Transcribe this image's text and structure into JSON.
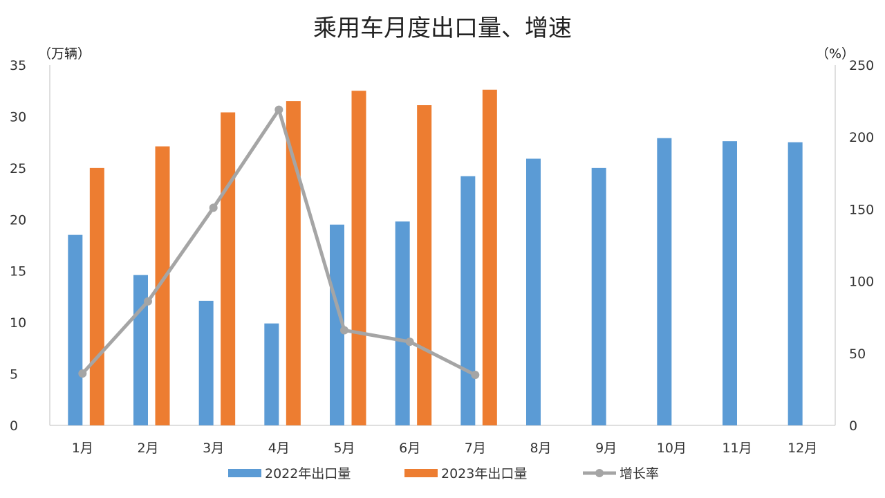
{
  "chart_data": {
    "type": "bar",
    "title": "乘用车月度出口量、增速",
    "left_unit": "（万辆）",
    "right_unit": "（%）",
    "categories": [
      "1月",
      "2月",
      "3月",
      "4月",
      "5月",
      "6月",
      "7月",
      "8月",
      "9月",
      "10月",
      "11月",
      "12月"
    ],
    "series": [
      {
        "name": "2022年出口量",
        "kind": "bar",
        "axis": "left",
        "color": "#5B9BD5",
        "values": [
          18.5,
          14.6,
          12.1,
          9.9,
          19.5,
          19.8,
          24.2,
          25.9,
          25.0,
          27.9,
          27.6,
          27.5
        ]
      },
      {
        "name": "2023年出口量",
        "kind": "bar",
        "axis": "left",
        "color": "#ED7D31",
        "values": [
          25.0,
          27.1,
          30.4,
          31.5,
          32.5,
          31.1,
          32.6,
          null,
          null,
          null,
          null,
          null
        ]
      },
      {
        "name": "增长率",
        "kind": "line",
        "axis": "right",
        "color": "#A5A5A5",
        "values": [
          36,
          86,
          151,
          219,
          66,
          58,
          35,
          null,
          null,
          null,
          null,
          null
        ]
      }
    ],
    "ylim_left": [
      0,
      35
    ],
    "yticks_left": [
      0,
      5,
      10,
      15,
      20,
      25,
      30,
      35
    ],
    "ylim_right": [
      0,
      250
    ],
    "yticks_right": [
      0,
      50,
      100,
      150,
      200,
      250
    ],
    "grid": false,
    "legend_position": "bottom"
  }
}
